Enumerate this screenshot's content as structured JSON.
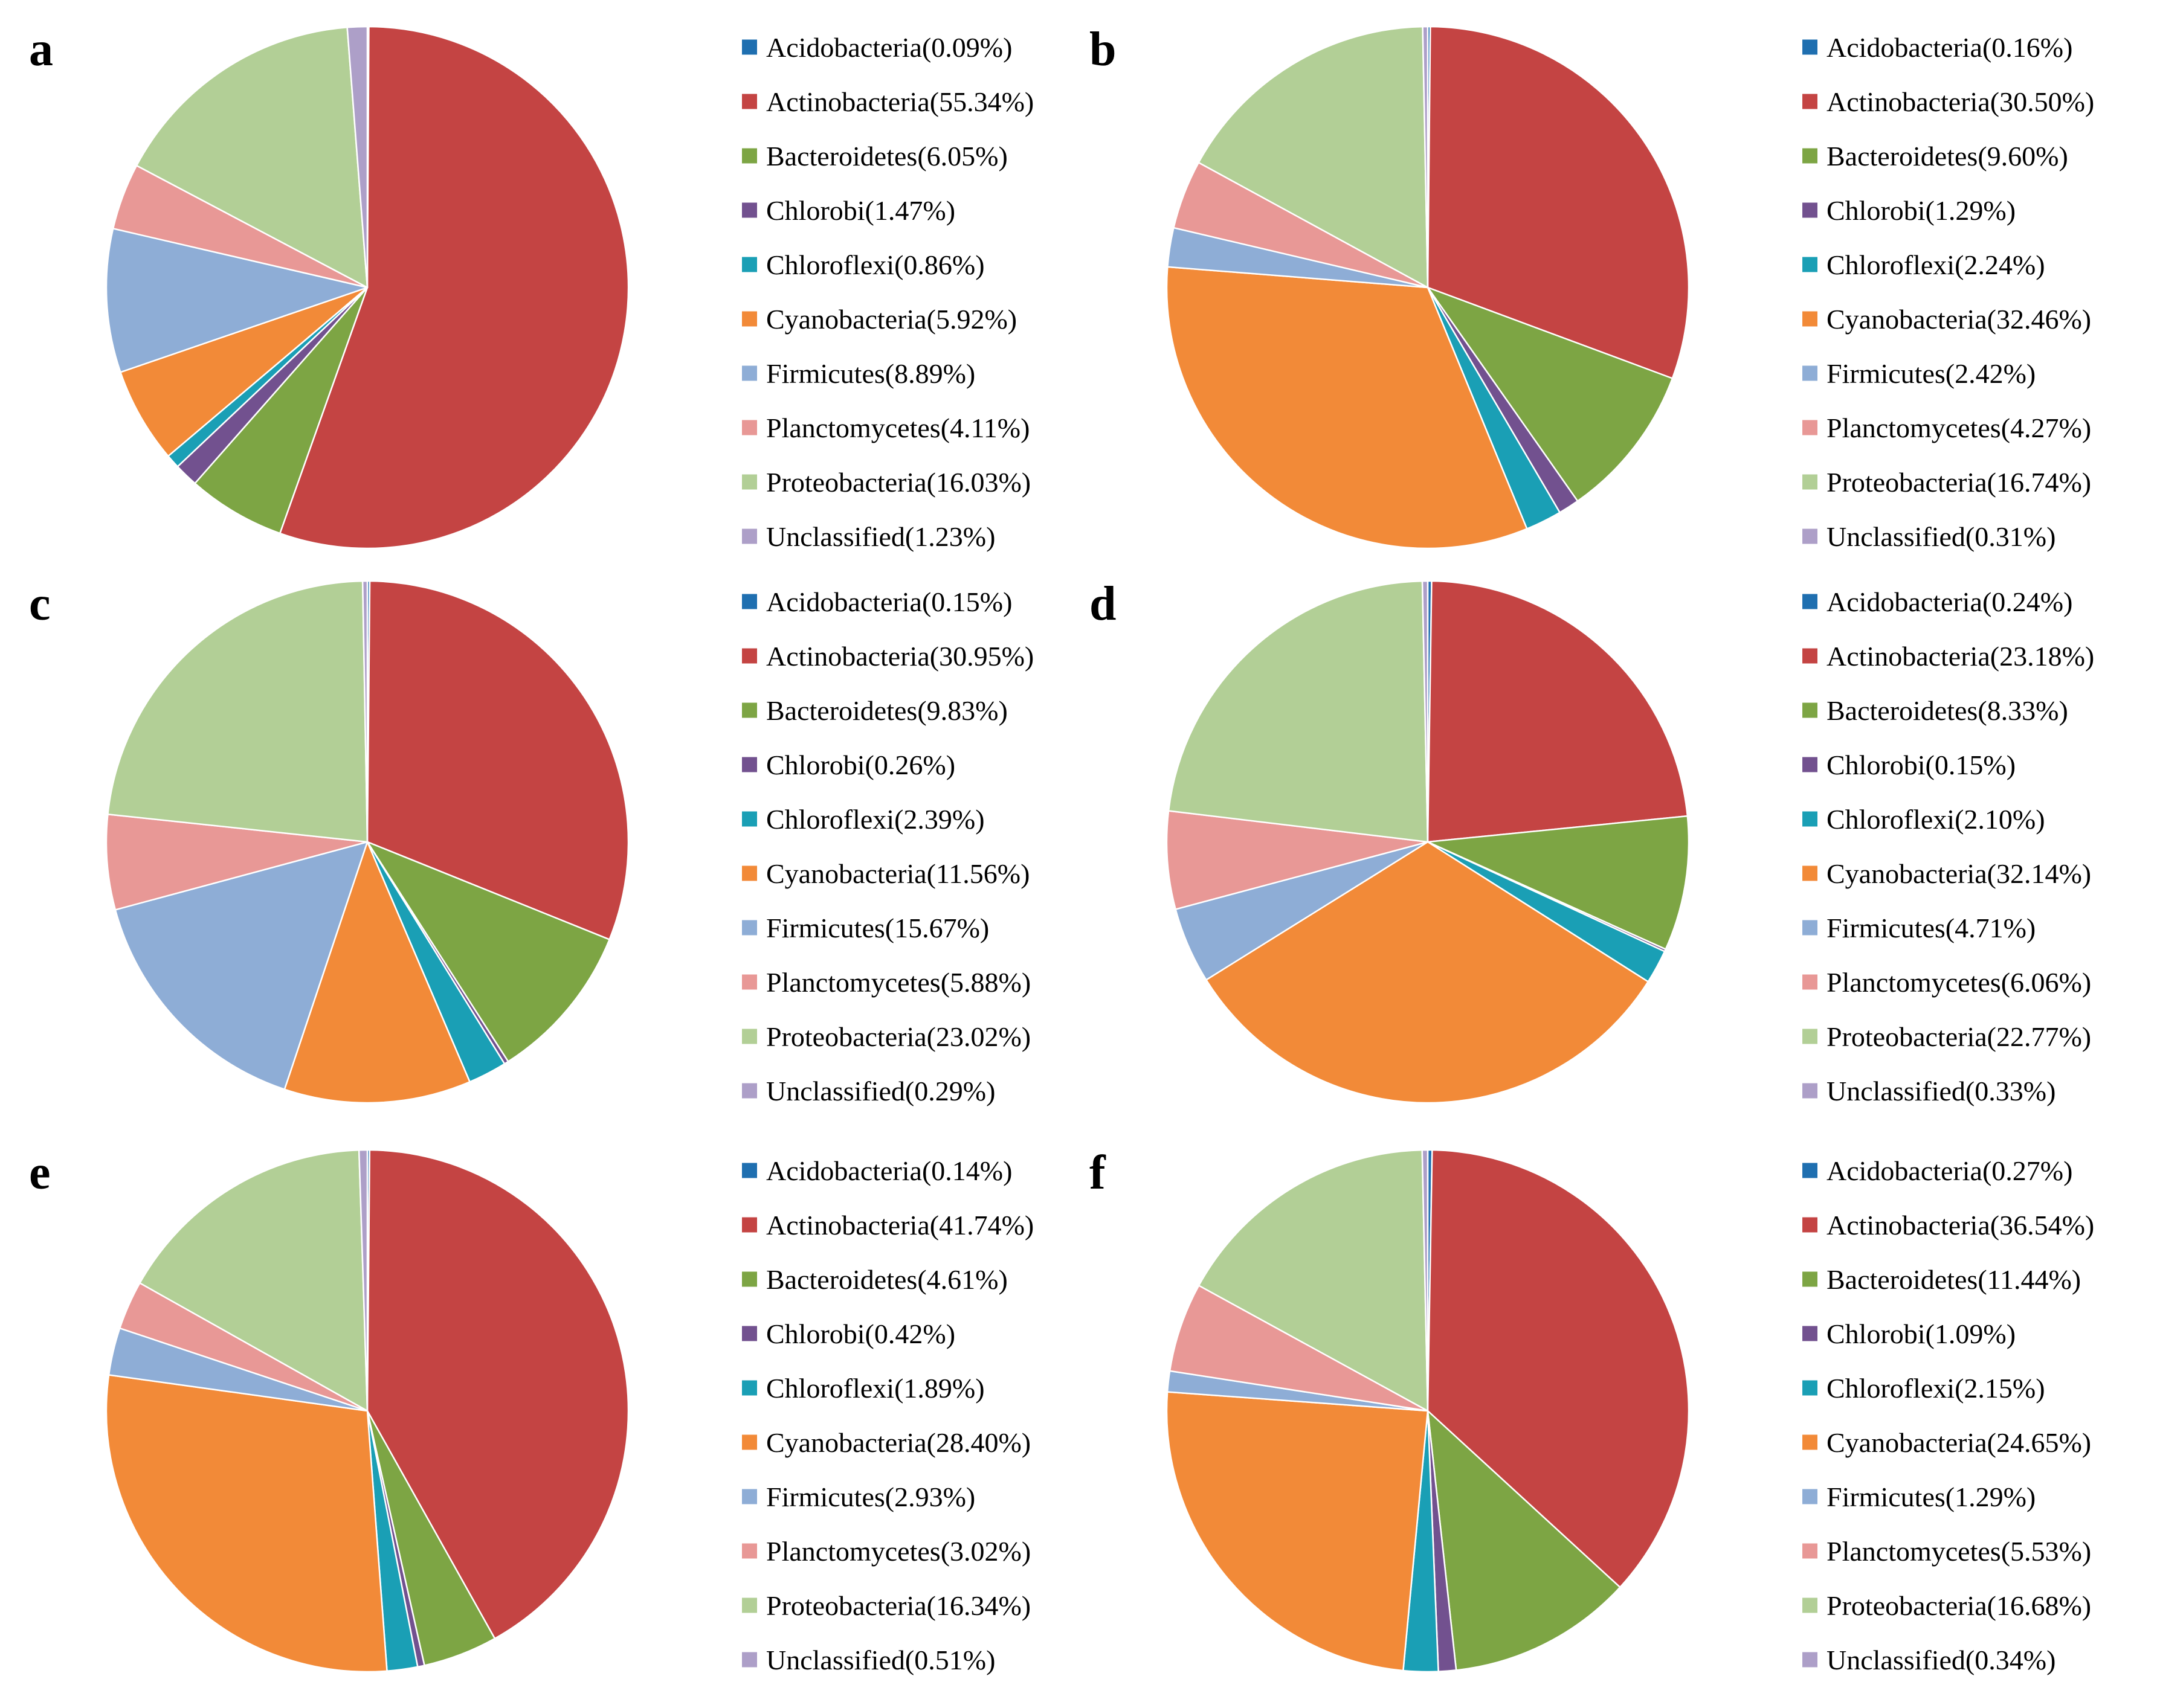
{
  "figure": {
    "categories": [
      "Acidobacteria",
      "Actinobacteria",
      "Bacteroidetes",
      "Chlorobi",
      "Chloroflexi",
      "Cyanobacteria",
      "Firmicutes",
      "Planctomycetes",
      "Proteobacteria",
      "Unclassified"
    ],
    "colors": [
      "#1f6fb0",
      "#c44443",
      "#7da544",
      "#72518f",
      "#1a9fb5",
      "#f28a38",
      "#8eadd6",
      "#e89896",
      "#b2cf96",
      "#ad9fc8"
    ]
  },
  "chart_data": [
    {
      "type": "pie",
      "title": "a",
      "labels": [
        "Acidobacteria(0.09%)",
        "Actinobacteria(55.34%)",
        "Bacteroidetes(6.05%)",
        "Chlorobi(1.47%)",
        "Chloroflexi(0.86%)",
        "Cyanobacteria(5.92%)",
        "Firmicutes(8.89%)",
        "Planctomycetes(4.11%)",
        "Proteobacteria(16.03%)",
        "Unclassified(1.23%)"
      ],
      "values": [
        0.09,
        55.34,
        6.05,
        1.47,
        0.86,
        5.92,
        8.89,
        4.11,
        16.03,
        1.23
      ]
    },
    {
      "type": "pie",
      "title": "b",
      "labels": [
        "Acidobacteria(0.16%)",
        "Actinobacteria(30.50%)",
        "Bacteroidetes(9.60%)",
        "Chlorobi(1.29%)",
        "Chloroflexi(2.24%)",
        "Cyanobacteria(32.46%)",
        "Firmicutes(2.42%)",
        "Planctomycetes(4.27%)",
        "Proteobacteria(16.74%)",
        "Unclassified(0.31%)"
      ],
      "values": [
        0.16,
        30.5,
        9.6,
        1.29,
        2.24,
        32.46,
        2.42,
        4.27,
        16.74,
        0.31
      ]
    },
    {
      "type": "pie",
      "title": "c",
      "labels": [
        "Acidobacteria(0.15%)",
        "Actinobacteria(30.95%)",
        "Bacteroidetes(9.83%)",
        "Chlorobi(0.26%)",
        "Chloroflexi(2.39%)",
        "Cyanobacteria(11.56%)",
        "Firmicutes(15.67%)",
        "Planctomycetes(5.88%)",
        "Proteobacteria(23.02%)",
        "Unclassified(0.29%)"
      ],
      "values": [
        0.15,
        30.95,
        9.83,
        0.26,
        2.39,
        11.56,
        15.67,
        5.88,
        23.02,
        0.29
      ]
    },
    {
      "type": "pie",
      "title": "d",
      "labels": [
        "Acidobacteria(0.24%)",
        "Actinobacteria(23.18%)",
        "Bacteroidetes(8.33%)",
        "Chlorobi(0.15%)",
        "Chloroflexi(2.10%)",
        "Cyanobacteria(32.14%)",
        "Firmicutes(4.71%)",
        "Planctomycetes(6.06%)",
        "Proteobacteria(22.77%)",
        "Unclassified(0.33%)"
      ],
      "values": [
        0.24,
        23.18,
        8.33,
        0.15,
        2.1,
        32.14,
        4.71,
        6.06,
        22.77,
        0.33
      ]
    },
    {
      "type": "pie",
      "title": "e",
      "labels": [
        "Acidobacteria(0.14%)",
        "Actinobacteria(41.74%)",
        "Bacteroidetes(4.61%)",
        "Chlorobi(0.42%)",
        "Chloroflexi(1.89%)",
        "Cyanobacteria(28.40%)",
        "Firmicutes(2.93%)",
        "Planctomycetes(3.02%)",
        "Proteobacteria(16.34%)",
        "Unclassified(0.51%)"
      ],
      "values": [
        0.14,
        41.74,
        4.61,
        0.42,
        1.89,
        28.4,
        2.93,
        3.02,
        16.34,
        0.51
      ]
    },
    {
      "type": "pie",
      "title": "f",
      "labels": [
        "Acidobacteria(0.27%)",
        "Actinobacteria(36.54%)",
        "Bacteroidetes(11.44%)",
        "Chlorobi(1.09%)",
        "Chloroflexi(2.15%)",
        "Cyanobacteria(24.65%)",
        "Firmicutes(1.29%)",
        "Planctomycetes(5.53%)",
        "Proteobacteria(16.68%)",
        "Unclassified(0.34%)"
      ],
      "values": [
        0.27,
        36.54,
        11.44,
        1.09,
        2.15,
        24.65,
        1.29,
        5.53,
        16.68,
        0.34
      ]
    }
  ]
}
